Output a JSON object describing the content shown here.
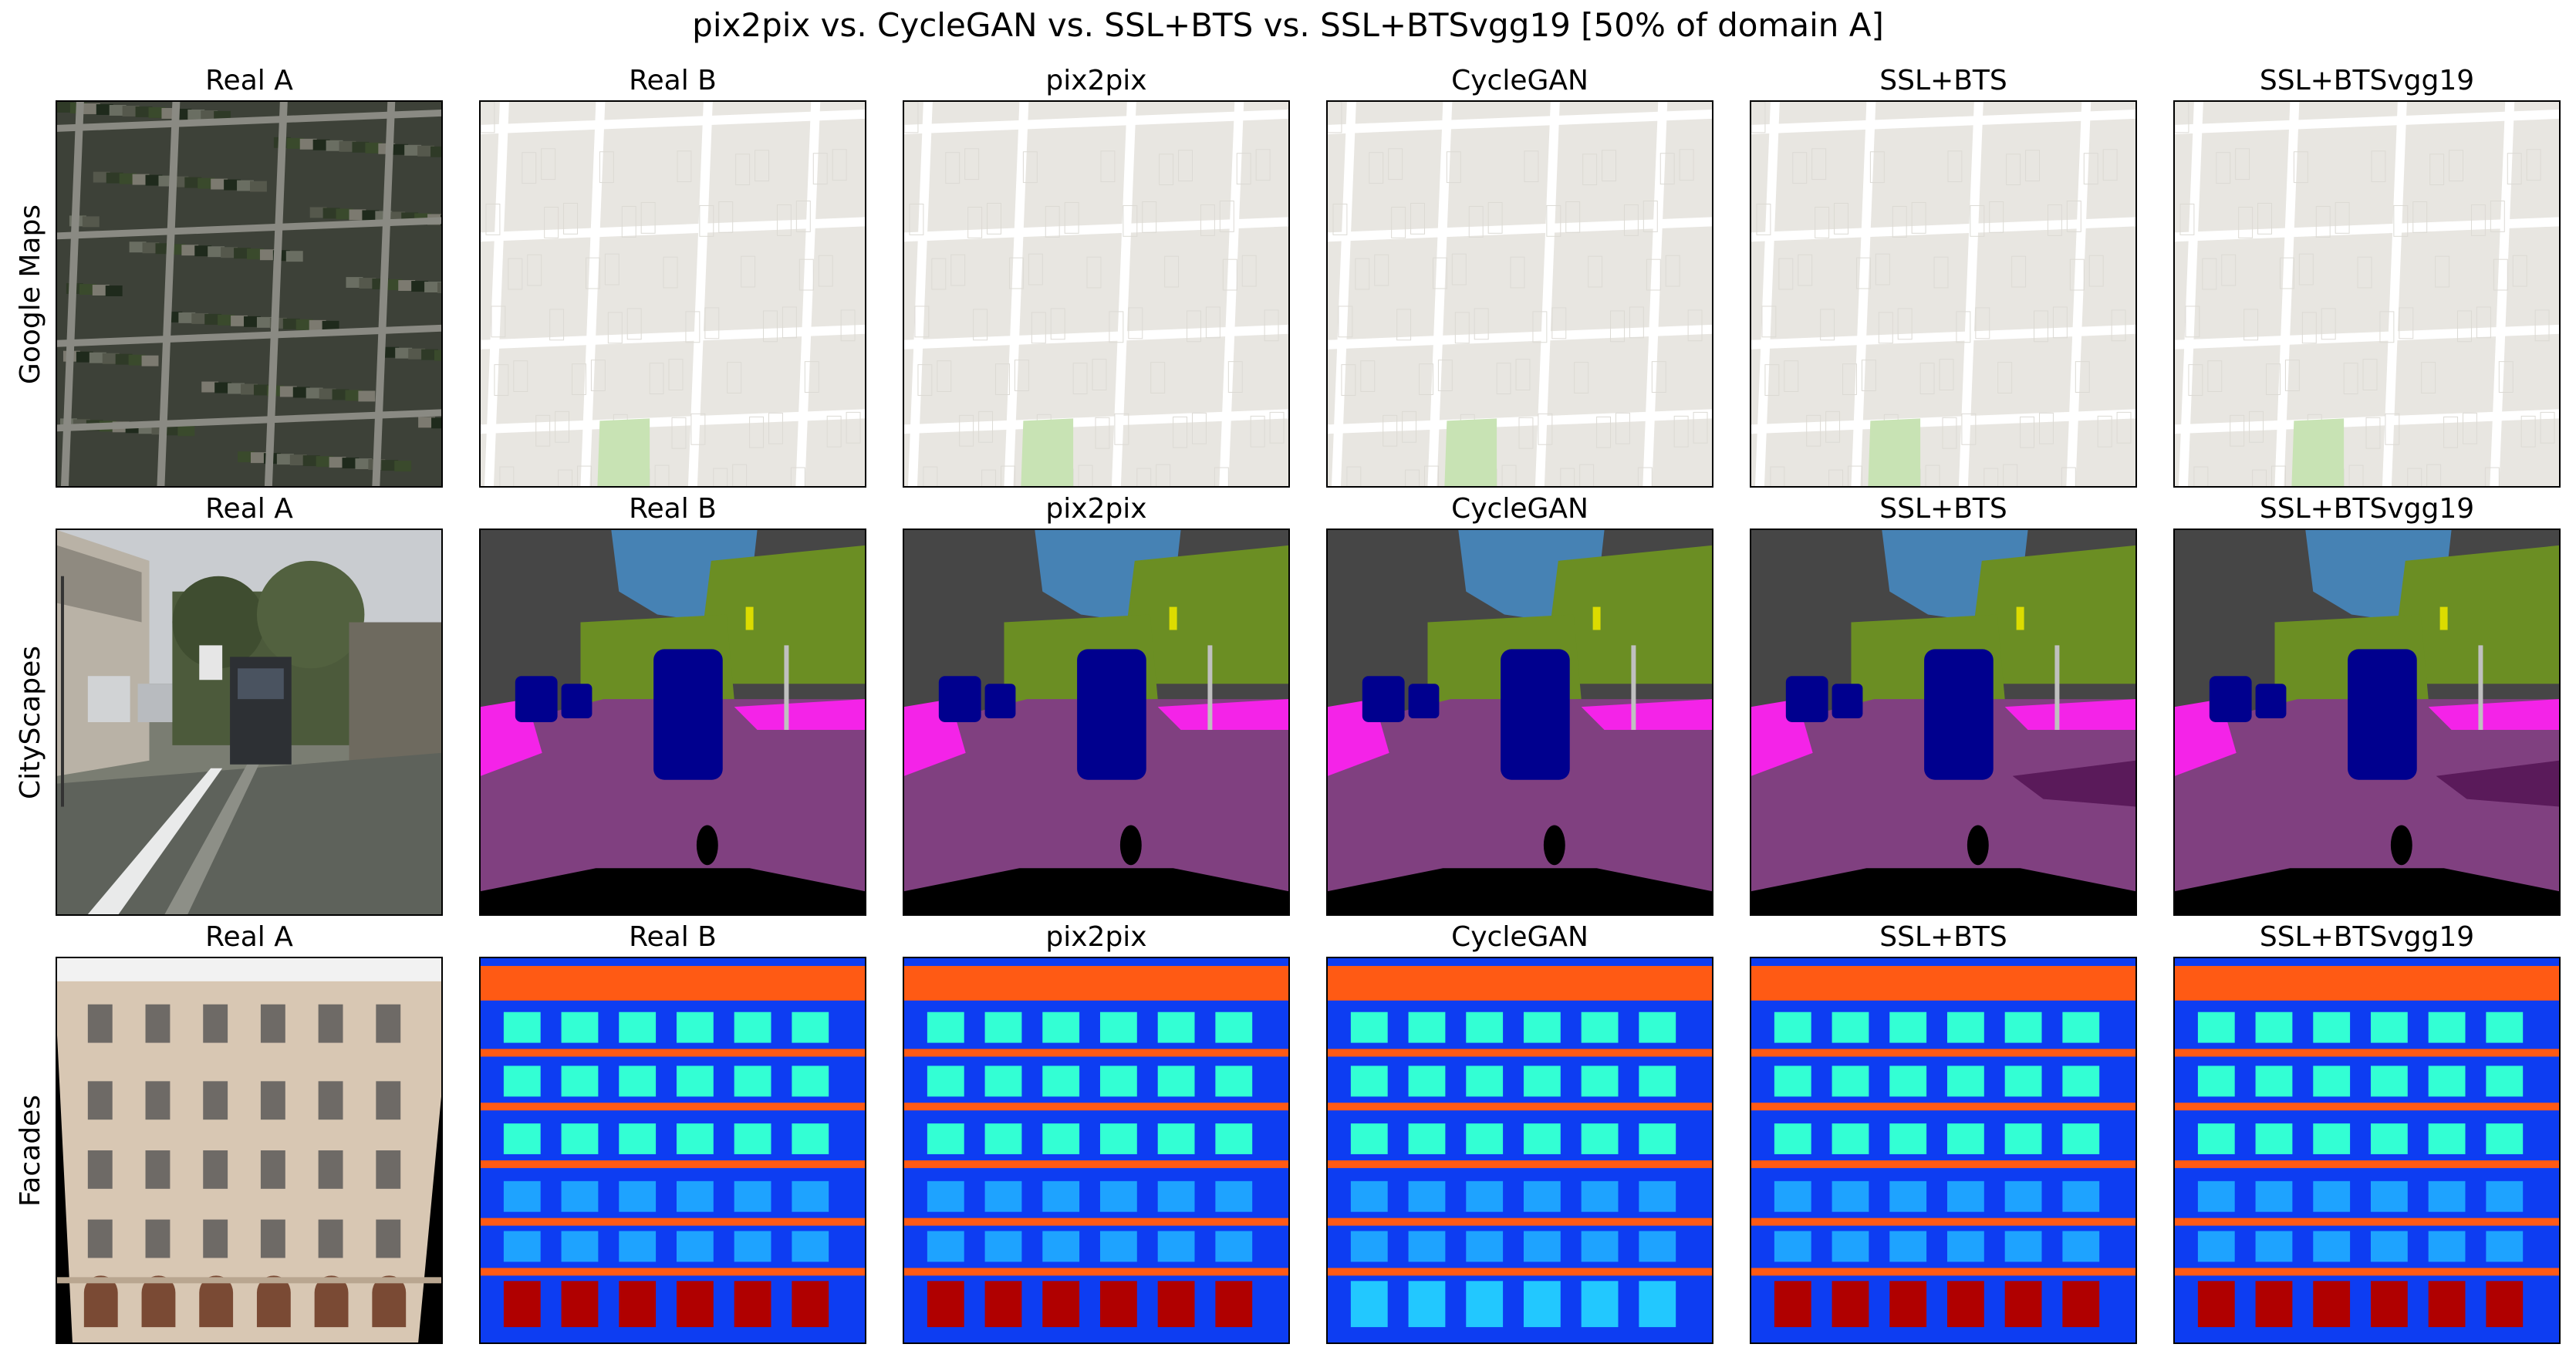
{
  "title": "pix2pix vs. CycleGAN vs. SSL+BTS vs. SSL+BTSvgg19 [50% of domain A]",
  "columns": [
    "Real A",
    "Real B",
    "pix2pix",
    "CycleGAN",
    "SSL+BTS",
    "SSL+BTSvgg19"
  ],
  "rows": [
    "Google Maps",
    "CityScapes",
    "Facades"
  ],
  "colors": {
    "map_bg": "#e8e6e1",
    "map_road": "#ffffff",
    "map_park": "#c8e3b4",
    "sat_bg": "#3d4138",
    "seg_road": "#804080",
    "seg_sky": "#4682b4",
    "seg_veg": "#6b8e23",
    "seg_car": "#00008e",
    "seg_sidewalk": "#f423e8",
    "seg_building": "#464646",
    "facade_wall": "#0d3df2",
    "facade_window": "#1ea3ff",
    "facade_sill": "#ff5a14",
    "facade_cornice": "#33ffd4"
  }
}
